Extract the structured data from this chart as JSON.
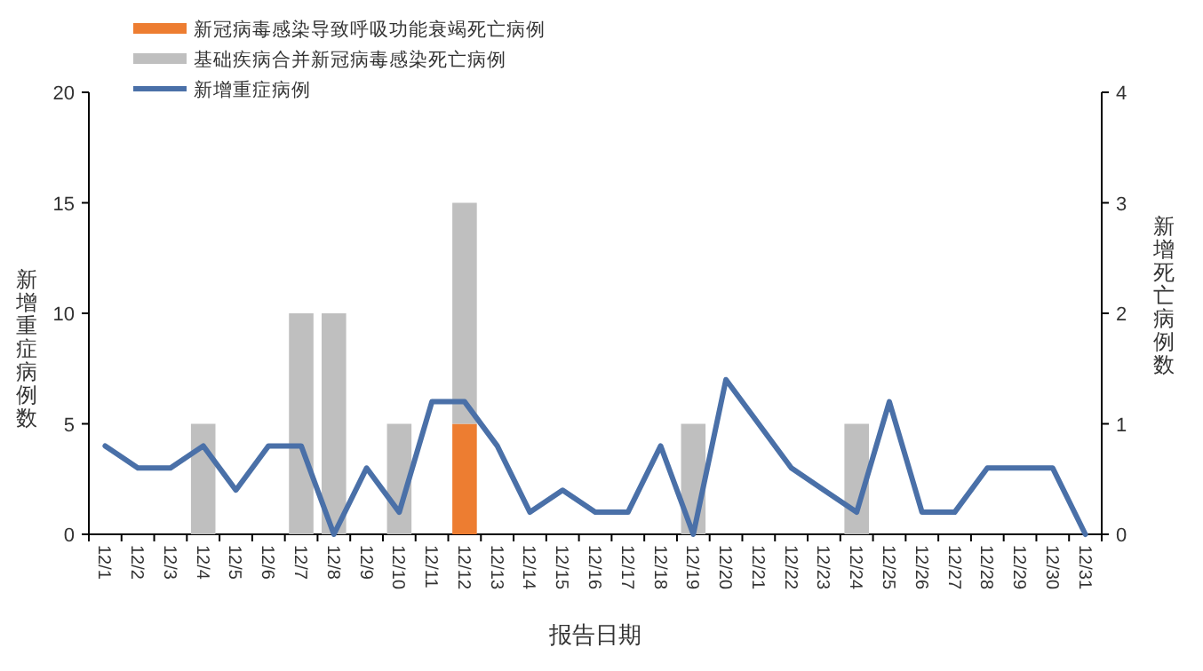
{
  "chart_data": {
    "type": "bar",
    "stacked": true,
    "categories": [
      "12/1",
      "12/2",
      "12/3",
      "12/4",
      "12/5",
      "12/6",
      "12/7",
      "12/8",
      "12/9",
      "12/10",
      "12/11",
      "12/12",
      "12/13",
      "12/14",
      "12/15",
      "12/16",
      "12/17",
      "12/18",
      "12/19",
      "12/20",
      "12/21",
      "12/22",
      "12/23",
      "12/24",
      "12/25",
      "12/26",
      "12/27",
      "12/28",
      "12/29",
      "12/30",
      "12/31"
    ],
    "series": [
      {
        "name": "新冠病毒感染导致呼吸功能衰竭死亡病例",
        "color": "#ed7d31",
        "axis": "y2",
        "values": [
          null,
          null,
          null,
          null,
          null,
          null,
          null,
          null,
          null,
          null,
          null,
          1,
          null,
          null,
          null,
          null,
          null,
          null,
          null,
          null,
          null,
          null,
          null,
          null,
          null,
          null,
          null,
          null,
          null,
          null,
          null
        ]
      },
      {
        "name": "基础疾病合并新冠病毒感染死亡病例",
        "color": "#bfbfbf",
        "axis": "y2",
        "values": [
          null,
          null,
          null,
          1,
          null,
          null,
          2,
          2,
          null,
          1,
          null,
          2,
          null,
          null,
          null,
          null,
          null,
          null,
          1,
          null,
          null,
          null,
          null,
          1,
          null,
          null,
          null,
          null,
          null,
          null,
          null
        ]
      },
      {
        "name": "新增重症病例",
        "color": "#4a70a8",
        "type": "line",
        "values": [
          4,
          3,
          3,
          4,
          2,
          4,
          4,
          0,
          3,
          1,
          6,
          6,
          4,
          1,
          2,
          1,
          1,
          4,
          0,
          7,
          5,
          3,
          2,
          1,
          6,
          1,
          1,
          3,
          3,
          3,
          0
        ]
      }
    ],
    "xlabel": "报告日期",
    "ylabel": "新增重症病例数",
    "y2label": "新增死亡病例数",
    "ylim": [
      0,
      20
    ],
    "yticks": [
      0,
      5,
      10,
      15,
      20
    ],
    "y2lim": [
      0,
      4
    ],
    "y2ticks": [
      0,
      1,
      2,
      3,
      4
    ],
    "legend": "top left",
    "grid": false
  }
}
